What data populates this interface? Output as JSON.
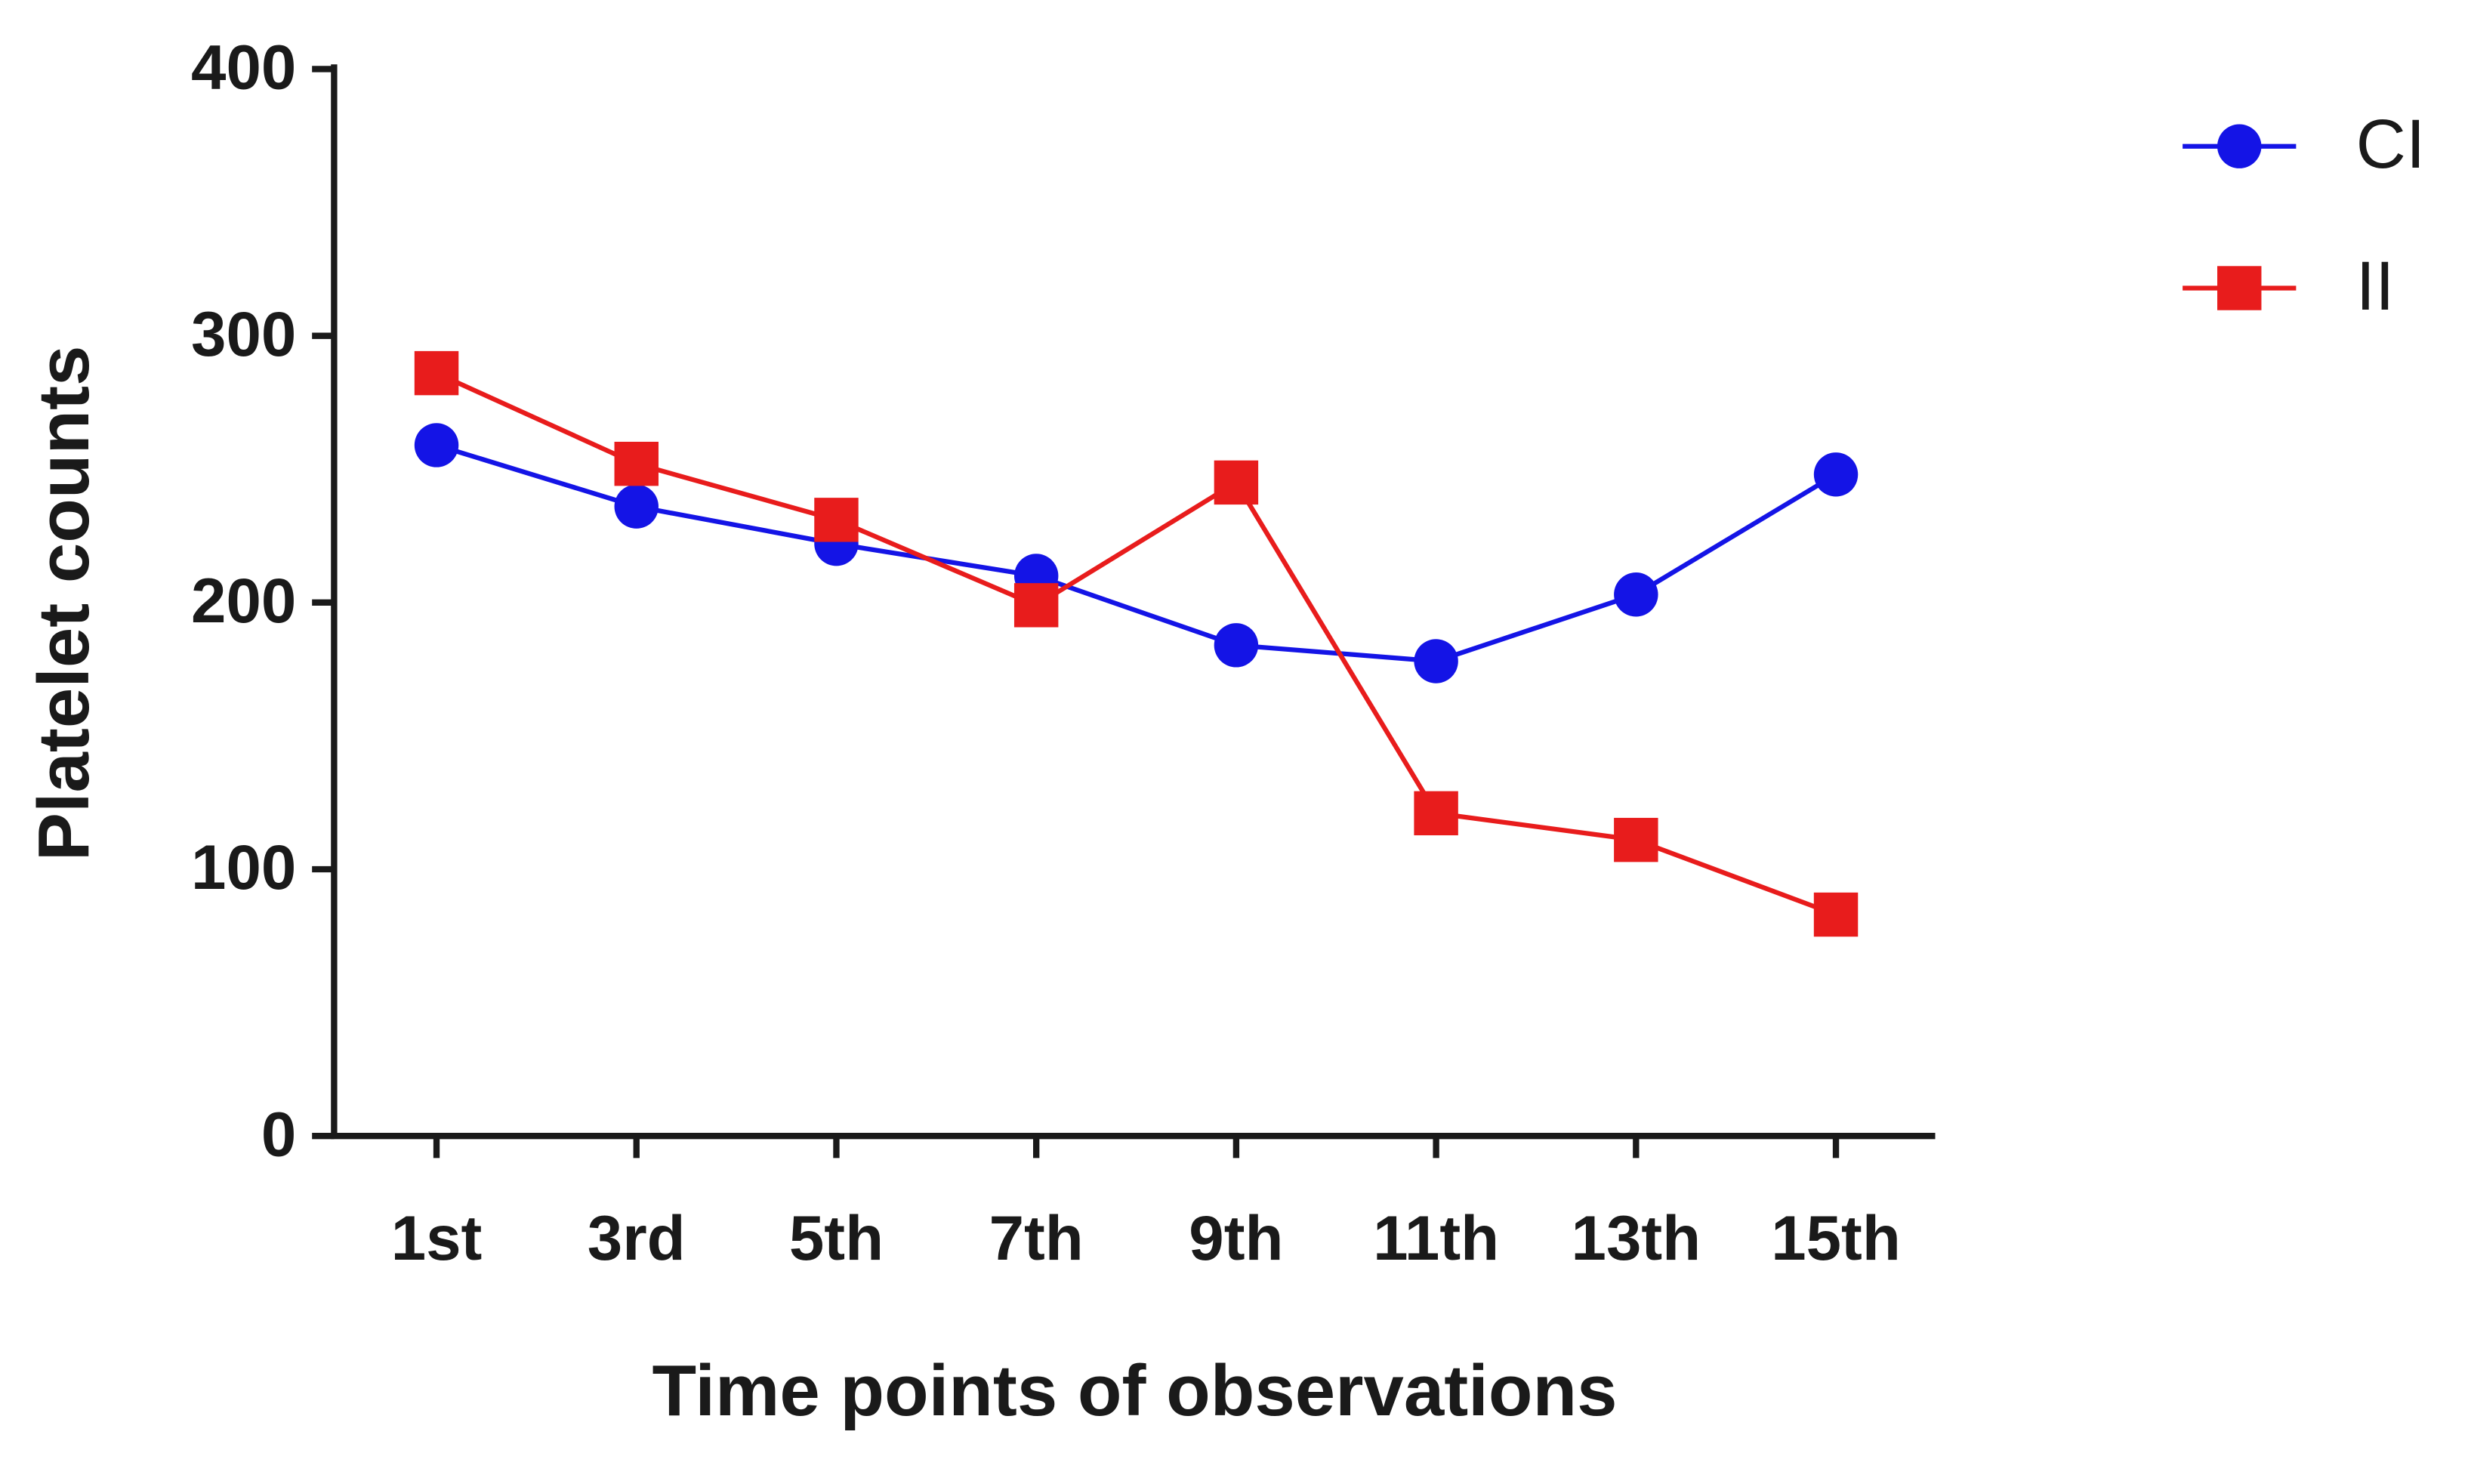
{
  "chart_data": {
    "type": "line",
    "x_label": "Time points of observations",
    "y_label": "Platelet counts",
    "categories": [
      "1st",
      "3rd",
      "5th",
      "7th",
      "9th",
      "11th",
      "13th",
      "15th"
    ],
    "series": [
      {
        "name": "CI",
        "color": "#1414e6",
        "marker": "circle",
        "values": [
          259,
          236,
          222,
          210,
          184,
          178,
          203,
          248
        ]
      },
      {
        "name": "II",
        "color": "#e81c1c",
        "marker": "square",
        "values": [
          286,
          252,
          231,
          199,
          245,
          121,
          111,
          83
        ]
      }
    ],
    "ylim": [
      0,
      400
    ],
    "yticks": [
      0,
      100,
      200,
      300,
      400
    ],
    "grid": false,
    "legend": "top-right"
  }
}
